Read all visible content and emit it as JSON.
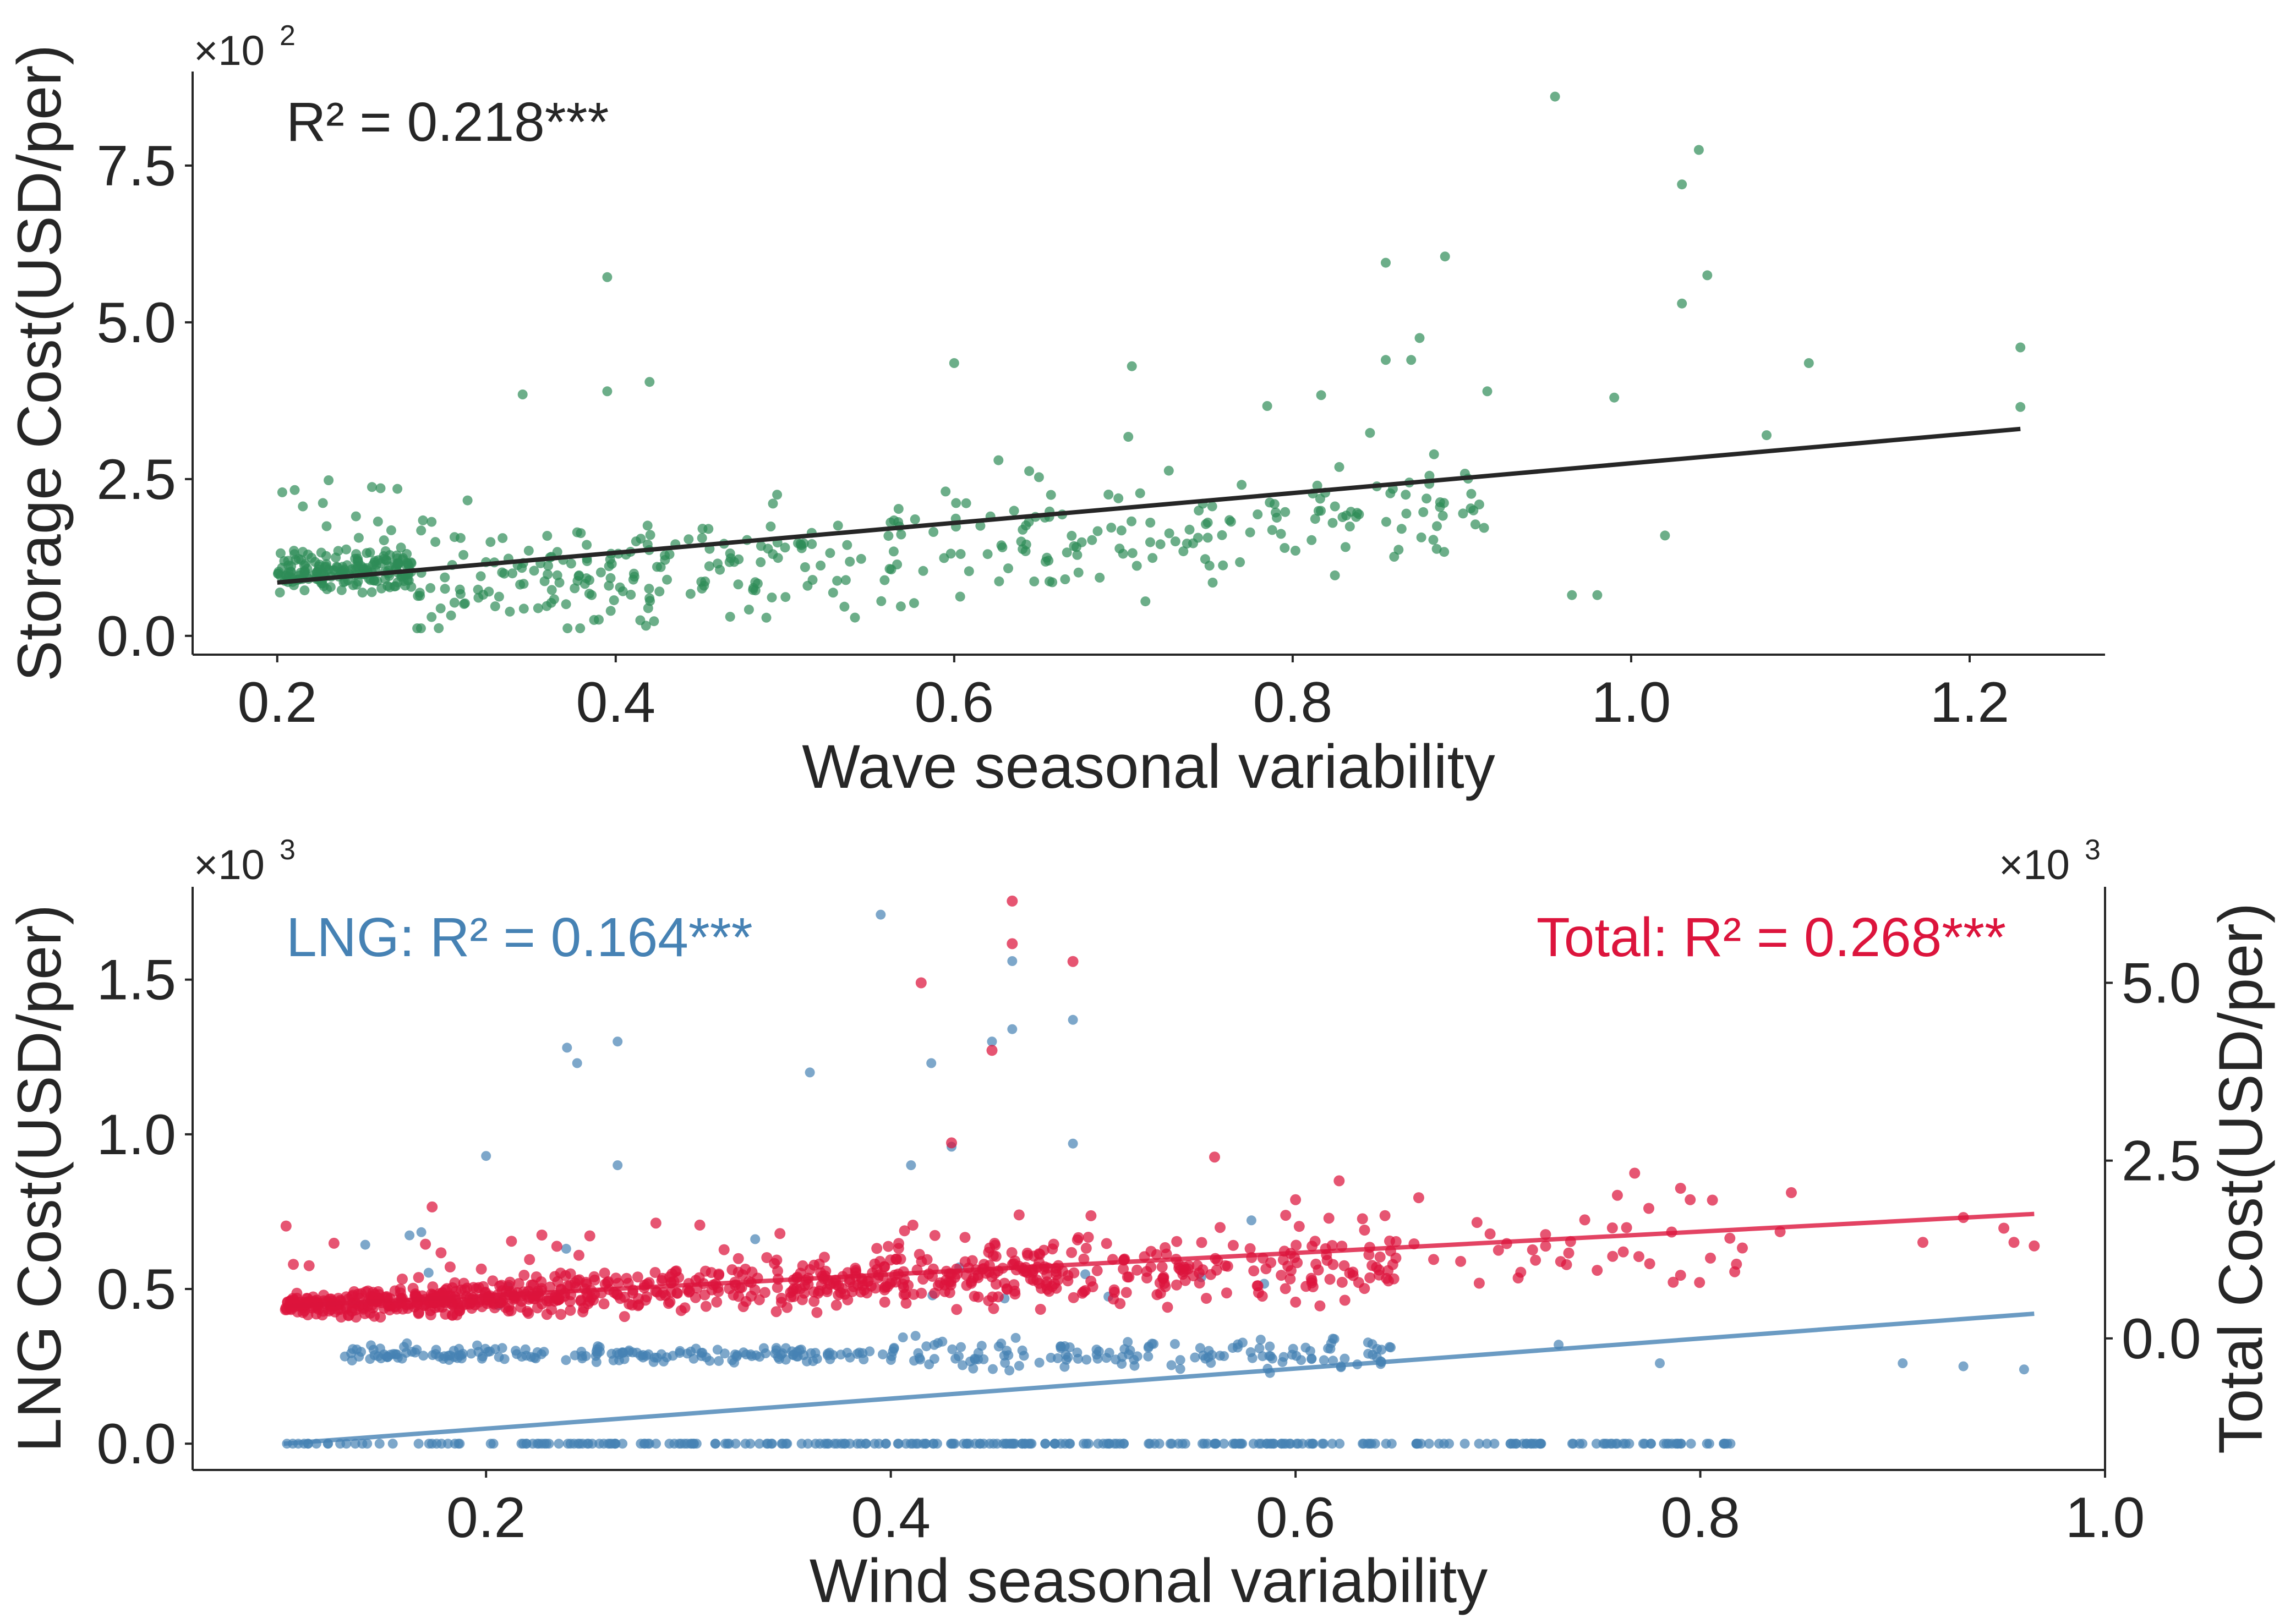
{
  "chart_data": [
    {
      "type": "scatter",
      "panel": "top",
      "xlabel": "Wave seasonal variability",
      "ylabel": "Storage Cost(USD/per)",
      "x_ticks": [
        "0.2",
        "0.4",
        "0.6",
        "0.8",
        "1.0",
        "1.2"
      ],
      "y_ticks": [
        "0.0",
        "2.5",
        "5.0",
        "7.5"
      ],
      "y_offset_base": "×10",
      "y_offset_exp": "2",
      "xlim": [
        0.15,
        1.28
      ],
      "ylim": [
        -0.3,
        9.0
      ],
      "y_unit_scale": 100,
      "grid": false,
      "annotation": "R² = 0.218***",
      "colors": {
        "points": "#2e8b57",
        "fit": "#262626",
        "annotation": "#262626"
      },
      "fit_line": {
        "x": [
          0.2,
          1.23
        ],
        "y": [
          0.85,
          3.3
        ]
      },
      "series": [
        {
          "color": "#2e8b57",
          "sample_note": "synthetic sample generated by seed",
          "generator": {
            "seed": 21,
            "count": 560,
            "x_min": 0.2,
            "x_max": 1.23
          },
          "points": [
            [
              0.955,
              8.6
            ],
            [
              1.04,
              7.75
            ],
            [
              1.03,
              7.2
            ],
            [
              0.395,
              5.72
            ],
            [
              0.89,
              6.05
            ],
            [
              0.855,
              5.95
            ],
            [
              1.045,
              5.75
            ],
            [
              1.03,
              5.3
            ],
            [
              1.23,
              4.6
            ],
            [
              0.875,
              4.75
            ],
            [
              0.6,
              4.35
            ],
            [
              1.105,
              4.35
            ],
            [
              0.705,
              4.3
            ],
            [
              0.87,
              4.4
            ],
            [
              0.855,
              4.4
            ],
            [
              0.42,
              4.05
            ],
            [
              0.395,
              3.9
            ],
            [
              0.345,
              3.85
            ],
            [
              1.23,
              3.65
            ],
            [
              0.99,
              3.8
            ],
            [
              1.08,
              3.2
            ],
            [
              0.915,
              3.9
            ],
            [
              1.02,
              1.6
            ],
            [
              0.965,
              0.65
            ],
            [
              0.98,
              0.65
            ]
          ]
        }
      ]
    },
    {
      "type": "scatter",
      "panel": "bottom",
      "xlabel": "Wind seasonal variability",
      "ylabel": "LNG Cost(USD/per)",
      "ylabel_right": "Total Cost(USD/per)",
      "x_ticks": [
        "0.2",
        "0.4",
        "0.6",
        "0.8",
        "1.0"
      ],
      "y_ticks": [
        "0.0",
        "0.5",
        "1.0",
        "1.5"
      ],
      "y_ticks_right": [
        "0.0",
        "2.5",
        "5.0"
      ],
      "y_offset_base": "×10",
      "y_offset_exp": "3",
      "y_offset_base_right": "×10",
      "y_offset_exp_right": "3",
      "xlim": [
        0.055,
        1.0
      ],
      "ylim": [
        -0.085,
        1.8
      ],
      "ylim_right": [
        -1.85,
        6.35
      ],
      "y_unit_scale": 1000,
      "y_unit_scale_right": 1000,
      "grid": false,
      "annotation_left": "LNG: R² = 0.164***",
      "annotation_right": "Total: R² = 0.268***",
      "colors": {
        "lng": "#4682b4",
        "total": "#dc143c"
      },
      "fit_lines": {
        "lng": {
          "x": [
            0.1,
            0.965
          ],
          "y": [
            0.0,
            0.42
          ]
        },
        "total": {
          "x": [
            0.1,
            0.965
          ],
          "y": [
            0.45,
            1.75
          ]
        }
      },
      "series": [
        {
          "name": "LNG",
          "axis": "left",
          "color": "#4682b4",
          "sample_note": "synthetic sample generated by seed",
          "generator": {
            "seed": 7,
            "zero_count": 300,
            "band_count": 330,
            "x_min": 0.1,
            "x_max": 0.965
          },
          "points": [
            [
              0.395,
              1.71
            ],
            [
              0.46,
              1.56
            ],
            [
              0.24,
              1.28
            ],
            [
              0.265,
              1.3
            ],
            [
              0.245,
              1.23
            ],
            [
              0.42,
              1.23
            ],
            [
              0.45,
              1.3
            ],
            [
              0.46,
              1.34
            ],
            [
              0.36,
              1.2
            ],
            [
              0.49,
              1.37
            ],
            [
              0.2,
              0.93
            ],
            [
              0.265,
              0.9
            ],
            [
              0.43,
              0.96
            ],
            [
              0.49,
              0.97
            ],
            [
              0.41,
              0.9
            ],
            [
              0.9,
              0.26
            ],
            [
              0.93,
              0.25
            ],
            [
              0.96,
              0.24
            ],
            [
              0.78,
              0.26
            ],
            [
              0.73,
              0.32
            ]
          ]
        },
        {
          "name": "Total",
          "axis": "right",
          "color": "#dc143c",
          "sample_note": "synthetic sample generated by seed",
          "generator": {
            "seed": 11,
            "count": 900,
            "x_min": 0.1,
            "x_max": 0.965
          },
          "points": [
            [
              0.46,
              6.15
            ],
            [
              0.46,
              5.55
            ],
            [
              0.415,
              5.0
            ],
            [
              0.49,
              5.3
            ],
            [
              0.45,
              4.05
            ],
            [
              0.43,
              2.75
            ],
            [
              0.56,
              2.55
            ],
            [
              0.845,
              2.05
            ],
            [
              0.795,
              1.95
            ],
            [
              0.6,
              1.95
            ],
            [
              0.95,
              1.55
            ],
            [
              0.93,
              1.7
            ],
            [
              0.91,
              1.35
            ],
            [
              0.955,
              1.35
            ],
            [
              0.965,
              1.3
            ],
            [
              0.735,
              1.2
            ],
            [
              0.775,
              1.05
            ],
            [
              0.71,
              0.85
            ],
            [
              0.64,
              1.0
            ],
            [
              0.595,
              0.7
            ]
          ]
        }
      ]
    }
  ]
}
